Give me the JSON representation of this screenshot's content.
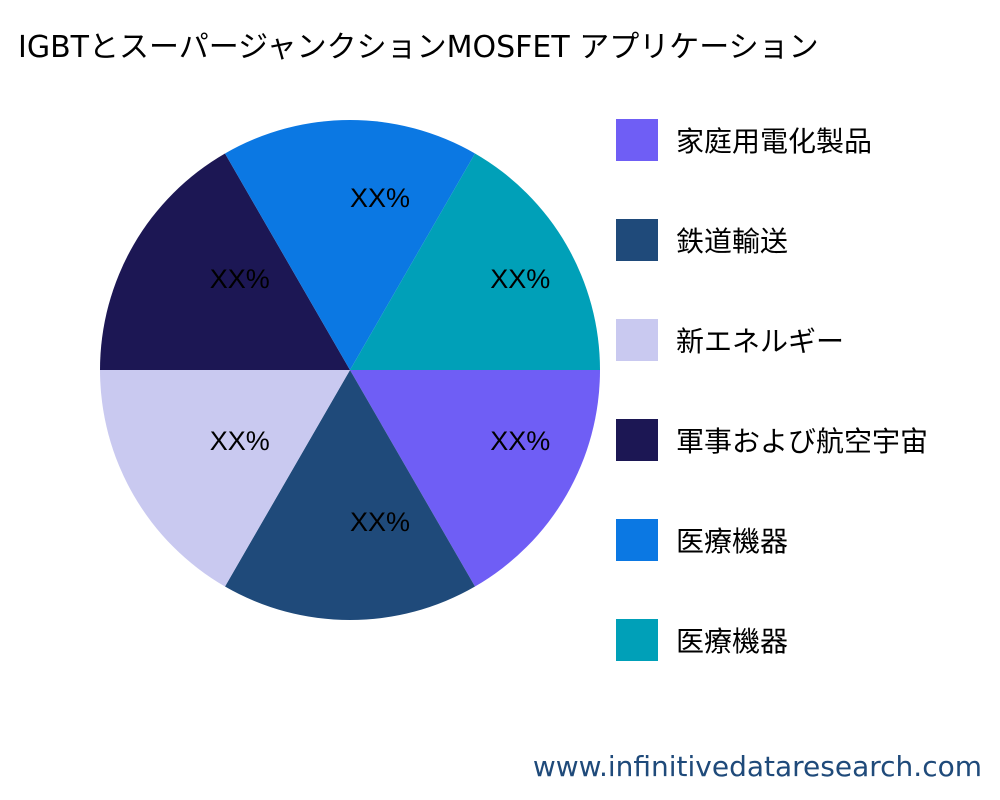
{
  "chart_data": {
    "type": "pie",
    "title": "IGBTとスーパージャンクションMOSFET アプリケーション",
    "categories": [
      "家庭用電化製品",
      "鉄道輸送",
      "新エネルギー",
      "軍事および航空宇宙",
      "医療機器",
      "医療機器"
    ],
    "values": [
      16.67,
      16.67,
      16.67,
      16.67,
      16.67,
      16.67
    ],
    "data_labels": [
      "XX%",
      "XX%",
      "XX%",
      "XX%",
      "XX%",
      "XX%"
    ],
    "colors": [
      "#6f5ef5",
      "#1f4a7a",
      "#c9c9f0",
      "#1c1754",
      "#0b78e3",
      "#00a0b8"
    ],
    "legend_placement": "right"
  },
  "footer": "www.infinitivedataresearch.com"
}
